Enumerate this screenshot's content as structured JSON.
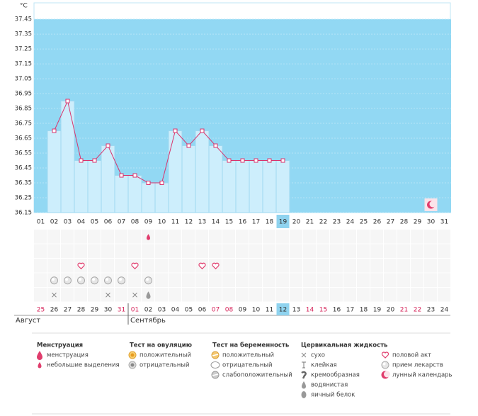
{
  "chart_data": {
    "type": "line",
    "y_label": "°C",
    "ylim": [
      36.15,
      37.56
    ],
    "yticks": [
      37.45,
      37.35,
      37.25,
      37.15,
      37.05,
      36.95,
      36.85,
      36.75,
      36.65,
      36.55,
      36.45,
      36.35,
      36.25,
      36.15
    ],
    "categories": [
      "01",
      "02",
      "03",
      "04",
      "05",
      "06",
      "07",
      "08",
      "09",
      "10",
      "11",
      "12",
      "13",
      "14",
      "15",
      "16",
      "17",
      "18",
      "19",
      "20",
      "21",
      "22",
      "23",
      "24",
      "25",
      "26",
      "27",
      "28",
      "29",
      "30",
      "31"
    ],
    "series": [
      {
        "color": "#d9336c",
        "bar_color": "#cdeefc",
        "values": [
          null,
          36.7,
          36.9,
          36.5,
          36.5,
          36.6,
          36.4,
          36.4,
          36.35,
          36.35,
          36.7,
          36.6,
          36.7,
          36.6,
          36.5,
          36.5,
          36.5,
          36.5,
          36.5,
          null,
          null,
          null,
          null,
          null,
          null,
          null,
          null,
          null,
          null,
          null,
          null
        ]
      }
    ],
    "background_color": "#92d8f3",
    "highlight_index": 18,
    "dates": [
      "25",
      "26",
      "27",
      "28",
      "29",
      "30",
      "31",
      "01",
      "02",
      "03",
      "04",
      "05",
      "06",
      "07",
      "08",
      "09",
      "10",
      "11",
      "12",
      "13",
      "14",
      "15",
      "16",
      "17",
      "18",
      "19",
      "20",
      "21",
      "22",
      "23",
      "24"
    ],
    "weekend": [
      0,
      6,
      7,
      13,
      14,
      20,
      21,
      27,
      28
    ],
    "months": [
      {
        "label": "Август",
        "start": 0
      },
      {
        "label": "Сентябрь",
        "start": 7
      }
    ],
    "chart_icons": [
      {
        "day": 30,
        "symbol": "moon"
      }
    ],
    "row_count": 5,
    "row_marks": [
      {
        "row": 0,
        "day": 9,
        "symbol": "drop-small"
      },
      {
        "row": 2,
        "day": 4,
        "symbol": "heart"
      },
      {
        "row": 2,
        "day": 8,
        "symbol": "heart"
      },
      {
        "row": 2,
        "day": 13,
        "symbol": "heart"
      },
      {
        "row": 2,
        "day": 14,
        "symbol": "heart"
      },
      {
        "row": 3,
        "day": 2,
        "symbol": "pill"
      },
      {
        "row": 3,
        "day": 3,
        "symbol": "pill"
      },
      {
        "row": 3,
        "day": 4,
        "symbol": "pill"
      },
      {
        "row": 3,
        "day": 5,
        "symbol": "pill"
      },
      {
        "row": 3,
        "day": 6,
        "symbol": "pill"
      },
      {
        "row": 3,
        "day": 7,
        "symbol": "pill"
      },
      {
        "row": 3,
        "day": 9,
        "symbol": "pill"
      },
      {
        "row": 4,
        "day": 2,
        "symbol": "dry"
      },
      {
        "row": 4,
        "day": 6,
        "symbol": "dry"
      },
      {
        "row": 4,
        "day": 8,
        "symbol": "dry"
      },
      {
        "row": 4,
        "day": 9,
        "symbol": "watery"
      }
    ]
  },
  "legend": [
    {
      "title": "Менструация",
      "items": [
        {
          "label": "менструация",
          "symbol": "drop"
        },
        {
          "label": "небольшие выделения",
          "symbol": "drop-small"
        }
      ]
    },
    {
      "title": "Тест на овуляцию",
      "items": [
        {
          "label": "положительный",
          "symbol": "ov-pos"
        },
        {
          "label": "отрицательный",
          "symbol": "ov-neg"
        }
      ]
    },
    {
      "title": "Тест на беременность",
      "items": [
        {
          "label": "положительный",
          "symbol": "preg-pos"
        },
        {
          "label": "отрицательный",
          "symbol": "preg-neg"
        },
        {
          "label": "слабоположительный",
          "symbol": "preg-weak"
        }
      ]
    },
    {
      "title": "Цервикальная жидкость",
      "items": [
        {
          "label": "сухо",
          "symbol": "dry"
        },
        {
          "label": "клейкая",
          "symbol": "sticky"
        },
        {
          "label": "кремообразная",
          "symbol": "creamy"
        },
        {
          "label": "водянистая",
          "symbol": "watery"
        },
        {
          "label": "яичный белок",
          "symbol": "egg"
        }
      ]
    },
    {
      "items": [
        {
          "label": "половой акт",
          "symbol": "heart"
        },
        {
          "label": "прием лекарств",
          "symbol": "pill"
        },
        {
          "label": "лунный календарь",
          "symbol": "moon"
        }
      ]
    }
  ]
}
